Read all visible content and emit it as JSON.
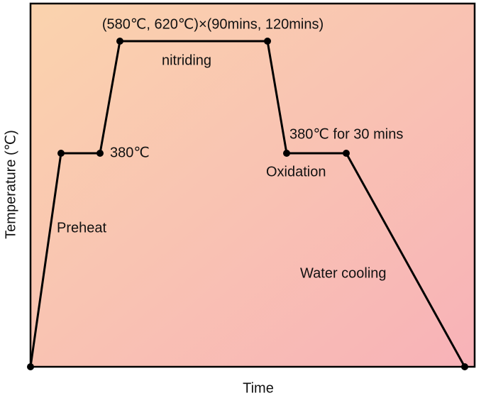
{
  "axes": {
    "x_label": "Time",
    "y_label": "Temperature (℃)"
  },
  "annotations": {
    "nitriding_condition": "(580℃, 620℃)×(90mins, 120mins)",
    "nitriding": "nitriding",
    "preheat_hold": "380℃",
    "oxidation_condition": "380℃ for 30 mins",
    "oxidation": "Oxidation",
    "preheat": "Preheat",
    "water_cooling": "Water cooling"
  }
}
